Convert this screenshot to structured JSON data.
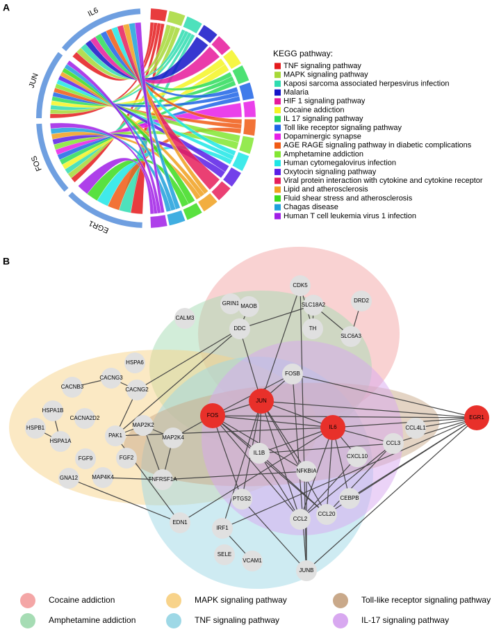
{
  "panel_a": {
    "label": "A",
    "genes": [
      "IL6",
      "JUN",
      "FOS",
      "EGR1"
    ],
    "gene_color": "#6f9fe0",
    "legend_title": "KEGG pathway:",
    "pathways": [
      {
        "name": "TNF signaling pathway",
        "color": "#e41a1c"
      },
      {
        "name": "MAPK signaling pathway",
        "color": "#a6d837"
      },
      {
        "name": "Kaposi sarcoma associated herpesvirus infection",
        "color": "#2fdcb0"
      },
      {
        "name": "Malaria",
        "color": "#1414c8"
      },
      {
        "name": "HIF 1 signaling pathway",
        "color": "#e6199b"
      },
      {
        "name": "Cocaine addiction",
        "color": "#f4f425"
      },
      {
        "name": "IL 17 signaling pathway",
        "color": "#2ddc5a"
      },
      {
        "name": "Toll like receptor signaling pathway",
        "color": "#1e64e6"
      },
      {
        "name": "Dopaminergic synapse",
        "color": "#e61ee6"
      },
      {
        "name": "AGE RAGE signaling pathway in diabetic complications",
        "color": "#f05a14"
      },
      {
        "name": "Amphetamine addiction",
        "color": "#82e632"
      },
      {
        "name": "Human cytomegalovirus infection",
        "color": "#1ee6e6"
      },
      {
        "name": "Oxytocin signaling pathway",
        "color": "#5a1ee6"
      },
      {
        "name": "Viral protein interaction with cytokine and cytokine receptor",
        "color": "#e61e5a"
      },
      {
        "name": "Lipid and atherosclerosis",
        "color": "#f0a01e"
      },
      {
        "name": "Fluid shear stress and atherosclerosis",
        "color": "#3cdc1e"
      },
      {
        "name": "Chagas disease",
        "color": "#1ea0dc"
      },
      {
        "name": "Human T cell leukemia virus 1 infection",
        "color": "#a01ee6"
      }
    ]
  },
  "panel_b": {
    "label": "B",
    "nodes": [
      {
        "label": "CDK5"
      },
      {
        "label": "DRD2"
      },
      {
        "label": "GRIN1"
      },
      {
        "label": "MAOB"
      },
      {
        "label": "SLC18A2"
      },
      {
        "label": "CALM3"
      },
      {
        "label": "DDC"
      },
      {
        "label": "TH"
      },
      {
        "label": "SLC6A3"
      },
      {
        "label": "HSPA6"
      },
      {
        "label": "CACNG3"
      },
      {
        "label": "FOSB"
      },
      {
        "label": "CACNB3"
      },
      {
        "label": "CACNG2"
      },
      {
        "label": "HSPA1B"
      },
      {
        "label": "CACNA2D2"
      },
      {
        "label": "JUN",
        "color": "#e8302a"
      },
      {
        "label": "FOS",
        "color": "#e8302a"
      },
      {
        "label": "EGR1",
        "color": "#e8302a"
      },
      {
        "label": "IL6",
        "color": "#e8302a"
      },
      {
        "label": "CCL4L1"
      },
      {
        "label": "HSPB1"
      },
      {
        "label": "PAK1"
      },
      {
        "label": "MAP2K2"
      },
      {
        "label": "MAP2K4"
      },
      {
        "label": "HSPA1A"
      },
      {
        "label": "CCL3"
      },
      {
        "label": "IL1B"
      },
      {
        "label": "CXCL10"
      },
      {
        "label": "FGF9"
      },
      {
        "label": "FGF2"
      },
      {
        "label": "NFKBIA"
      },
      {
        "label": "GNA12"
      },
      {
        "label": "MAP4K4"
      },
      {
        "label": "TNFRSF1A"
      },
      {
        "label": "CEBPB"
      },
      {
        "label": "PTGS2"
      },
      {
        "label": "CCL20"
      },
      {
        "label": "CCL2"
      },
      {
        "label": "EDN1"
      },
      {
        "label": "IRF1"
      },
      {
        "label": "SELE"
      },
      {
        "label": "VCAM1"
      },
      {
        "label": "JUNB"
      }
    ],
    "legend": [
      {
        "name": "Cocaine addiction",
        "color": "#f4a6a6"
      },
      {
        "name": "Amphetamine addiction",
        "color": "#a6dcb4"
      },
      {
        "name": "MAPK signaling pathway",
        "color": "#f8d38a"
      },
      {
        "name": "TNF signaling pathway",
        "color": "#9ed8e6"
      },
      {
        "name": "Toll-like receptor signaling pathway",
        "color": "#c9a98a"
      },
      {
        "name": "IL-17 signaling pathway",
        "color": "#d8a8f0"
      }
    ]
  }
}
